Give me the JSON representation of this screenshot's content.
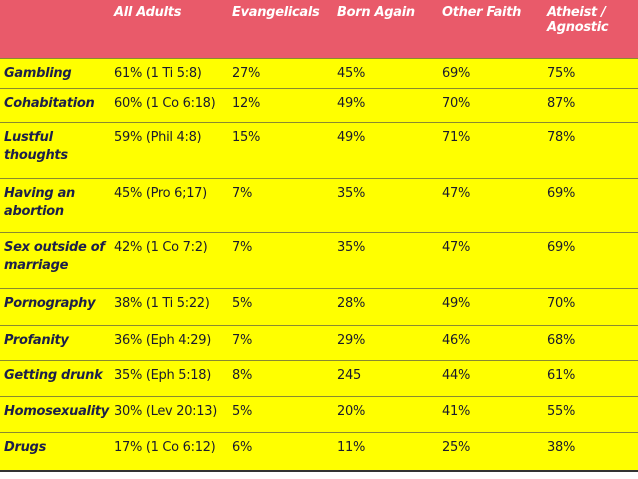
{
  "table": {
    "header": [
      "All Adults",
      "Evangelicals",
      "Born Again",
      "Other Faith",
      "Atheist / Agnostic"
    ],
    "rows": [
      [
        "Gambling",
        "61% (1 Ti 5:8)",
        "27%",
        "45%",
        "69%",
        "75%"
      ],
      [
        "Cohabitation",
        "60% (1 Co 6:18)",
        "12%",
        "49%",
        "70%",
        "87%"
      ],
      [
        "Lustful thoughts",
        "59% (Phil 4:8)",
        "15%",
        "49%",
        "71%",
        "78%"
      ],
      [
        "Having an abortion",
        "45% (Pro 6;17)",
        "7%",
        "35%",
        "47%",
        "69%"
      ],
      [
        "Sex outside of marriage",
        "42% (1 Co 7:2)",
        "7%",
        "35%",
        "47%",
        "69%"
      ],
      [
        "Pornography",
        "38% (1 Ti 5:22)",
        "5%",
        "28%",
        "49%",
        "70%"
      ],
      [
        "Profanity",
        "36% (Eph 4:29)",
        "7%",
        "29%",
        "46%",
        "68%"
      ],
      [
        "Getting drunk",
        "35% (Eph 5:18)",
        "8%",
        "245",
        "44%",
        "61%"
      ],
      [
        "Homosexuality",
        "30% (Lev 20:13)",
        "5%",
        "20%",
        "41%",
        "55%"
      ],
      [
        "Drugs",
        "17% (1 Co 6:12)",
        "6%",
        "11%",
        "25%",
        "38%"
      ]
    ]
  }
}
